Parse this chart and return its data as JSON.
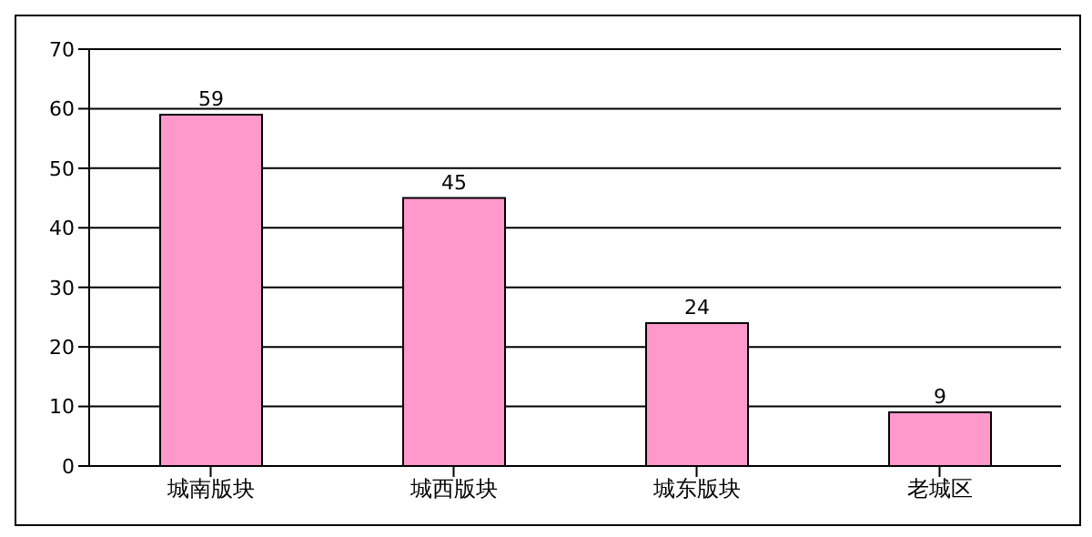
{
  "chart_data": {
    "type": "bar",
    "categories": [
      "城南版块",
      "城西版块",
      "城东版块",
      "老城区"
    ],
    "values": [
      59,
      45,
      24,
      9
    ],
    "color": "#ff99cc",
    "ylim": [
      0,
      70
    ],
    "yticks": [
      0,
      10,
      20,
      30,
      40,
      50,
      60,
      70
    ],
    "grid": "y",
    "data_labels": true
  }
}
